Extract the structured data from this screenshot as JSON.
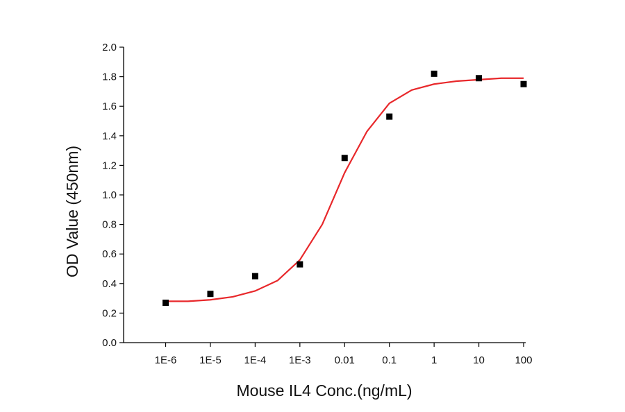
{
  "chart_data": {
    "type": "scatter",
    "x_label": "Mouse IL4 Conc.(ng/mL)",
    "y_label": "OD Value (450nm)",
    "log_x": true,
    "xlim": [
      1.15e-07,
      100
    ],
    "ylim": [
      0,
      2
    ],
    "xticks": [
      {
        "value": 1e-06,
        "label": "1E-6"
      },
      {
        "value": 1e-05,
        "label": "1E-5"
      },
      {
        "value": 0.0001,
        "label": "1E-4"
      },
      {
        "value": 0.001,
        "label": "1E-3"
      },
      0.01,
      0.1,
      1,
      10,
      100
    ],
    "yticks": [
      {
        "value": 0,
        "label": "0.0"
      },
      0.2,
      0.4,
      0.6,
      0.8,
      {
        "value": 1,
        "label": "1.0"
      },
      1.2,
      1.4,
      1.6,
      1.8,
      {
        "value": 2,
        "label": "2.0"
      }
    ],
    "series": [
      {
        "type": "scatter",
        "color": "#000000",
        "x": [
          1e-06,
          1e-05,
          0.0001,
          0.001,
          0.01,
          0.1,
          1,
          10,
          100
        ],
        "values": [
          0.27,
          0.33,
          0.45,
          0.53,
          1.25,
          1.53,
          1.82,
          1.79,
          1.75
        ]
      },
      {
        "type": "line",
        "color": "#e8282b",
        "x": [
          1e-06,
          3.162e-06,
          1e-05,
          3.162e-05,
          0.0001,
          0.0003162,
          0.001,
          0.003162,
          0.01,
          0.03162,
          0.1,
          0.3162,
          1,
          3.162,
          10,
          31.62,
          100
        ],
        "values": [
          0.28,
          0.28,
          0.29,
          0.31,
          0.35,
          0.42,
          0.56,
          0.8,
          1.15,
          1.43,
          1.62,
          1.71,
          1.75,
          1.77,
          1.78,
          1.79,
          1.79
        ]
      }
    ]
  }
}
